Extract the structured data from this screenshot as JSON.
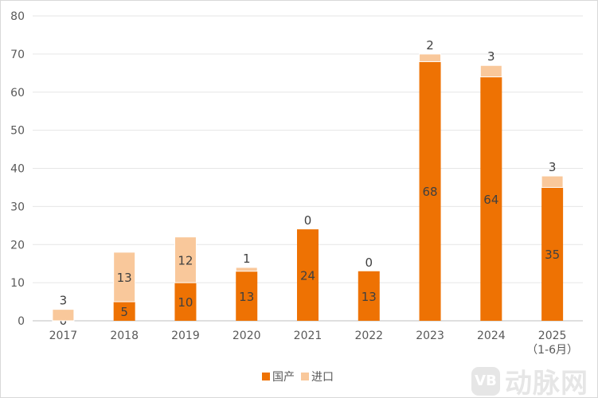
{
  "chart_data": {
    "type": "bar",
    "stacked": true,
    "categories": [
      "2017",
      "2018",
      "2019",
      "2020",
      "2021",
      "2022",
      "2023",
      "2024",
      "2025\n（1-6月）"
    ],
    "series": [
      {
        "name": "国产",
        "color": "#EE7203",
        "values": [
          0,
          5,
          10,
          13,
          24,
          13,
          68,
          64,
          35
        ]
      },
      {
        "name": "进口",
        "color": "#F9C89B",
        "values": [
          3,
          13,
          12,
          1,
          0,
          0,
          2,
          3,
          3
        ]
      }
    ],
    "ylim": [
      0,
      80
    ],
    "yticks": [
      0,
      10,
      20,
      30,
      40,
      50,
      60,
      70,
      80
    ],
    "grid": true,
    "legend_position": "bottom"
  },
  "watermark": {
    "logo": "VB",
    "text": "动脉网"
  }
}
